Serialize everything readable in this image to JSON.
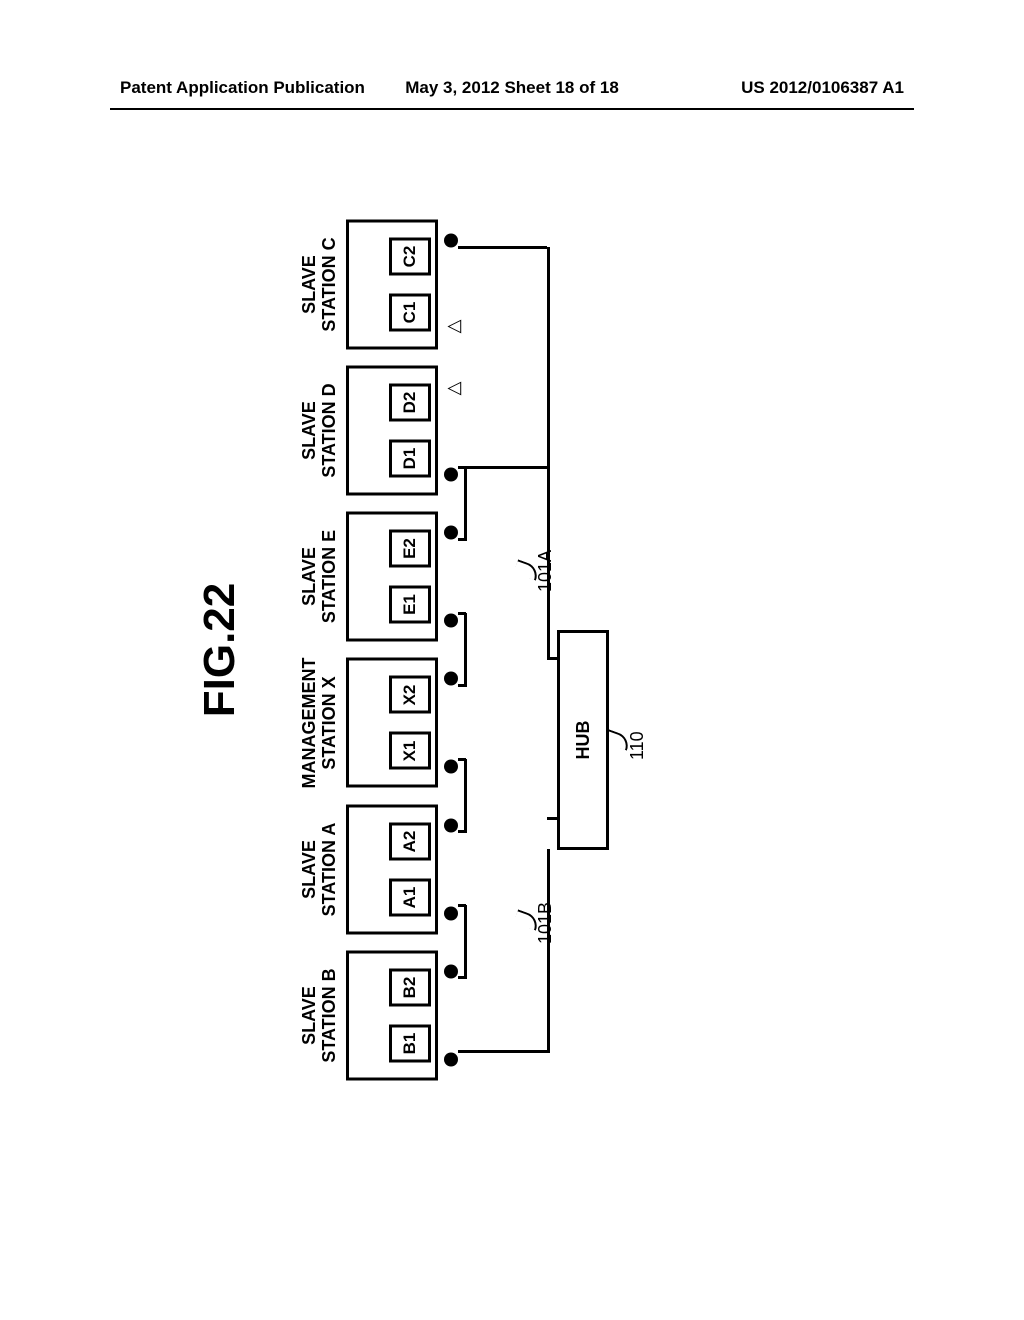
{
  "header": {
    "left": "Patent Application Publication",
    "center": "May 3, 2012  Sheet 18 of 18",
    "right": "US 2012/0106387 A1"
  },
  "figure": {
    "title": "FIG.22",
    "stations": [
      {
        "label_top": "SLAVE",
        "label_bot": "STATION B",
        "p1": "B1",
        "p2": "B2",
        "m1": "filled",
        "m2": "filled"
      },
      {
        "label_top": "SLAVE",
        "label_bot": "STATION A",
        "p1": "A1",
        "p2": "A2",
        "m1": "filled",
        "m2": "filled"
      },
      {
        "label_top": "MANAGEMENT",
        "label_bot": "STATION X",
        "p1": "X1",
        "p2": "X2",
        "m1": "filled",
        "m2": "filled"
      },
      {
        "label_top": "SLAVE",
        "label_bot": "STATION E",
        "p1": "E1",
        "p2": "E2",
        "m1": "filled",
        "m2": "filled"
      },
      {
        "label_top": "SLAVE",
        "label_bot": "STATION D",
        "p1": "D1",
        "p2": "D2",
        "m1": "filled",
        "m2": "open"
      },
      {
        "label_top": "SLAVE",
        "label_bot": "STATION C",
        "p1": "C1",
        "p2": "C2",
        "m1": "open",
        "m2": "filled"
      }
    ],
    "hub_label": "HUB",
    "hub_ref": "110",
    "wire_labels": {
      "left": "101B",
      "right": "101A"
    },
    "colors": {
      "stroke": "#000000",
      "bg": "#ffffff"
    }
  }
}
